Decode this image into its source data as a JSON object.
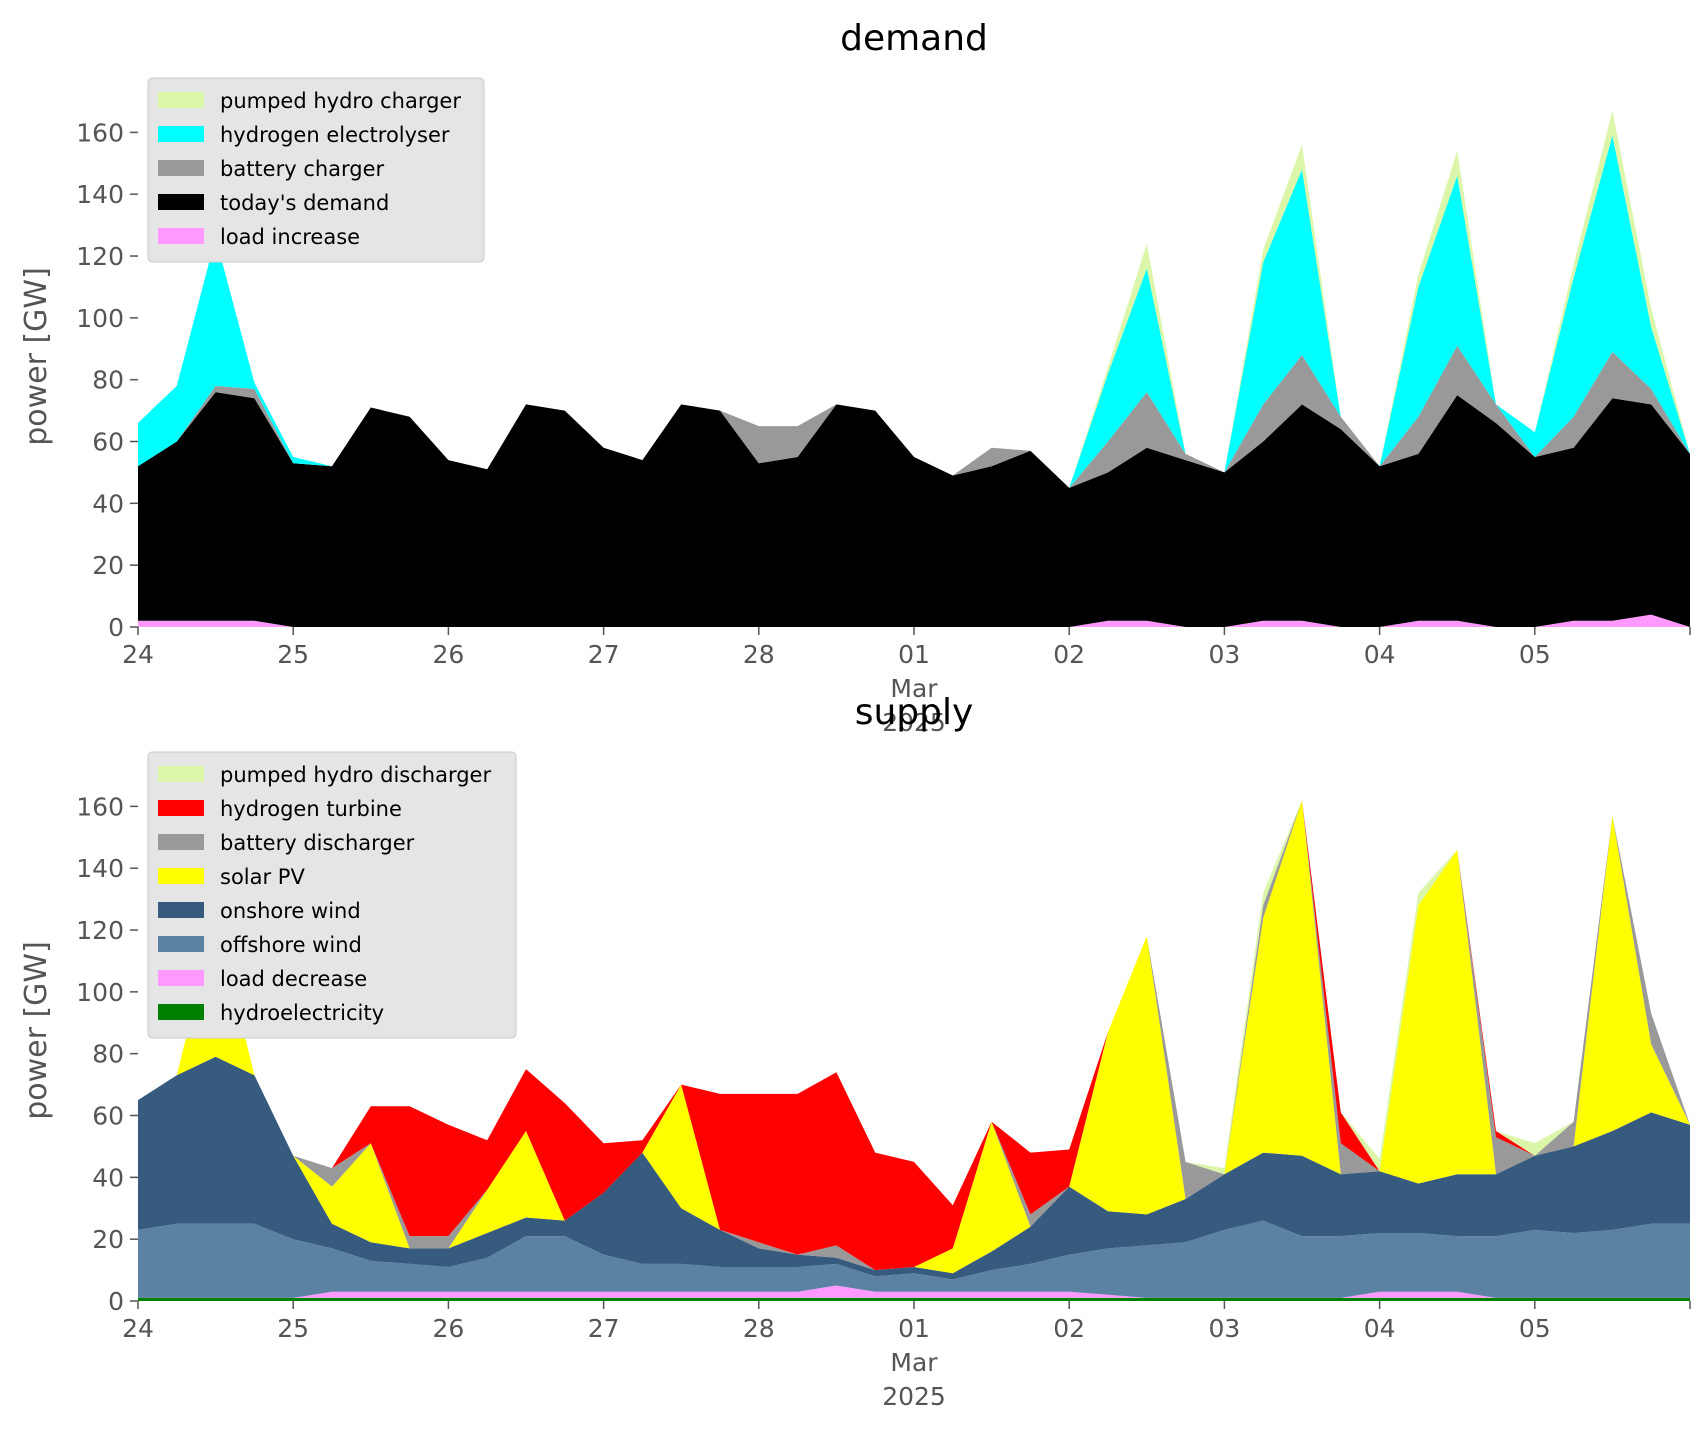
{
  "chart_data": [
    {
      "type": "area",
      "stacked": true,
      "title": "demand",
      "ylabel": "power [GW]",
      "xlabel": "",
      "x_ticks": [
        "24",
        "25",
        "26",
        "27",
        "28",
        "01",
        "02",
        "03",
        "04",
        "05"
      ],
      "x_month_label": "Mar",
      "x_year_label": "2025",
      "ylim": [
        0,
        175
      ],
      "y_ticks": [
        0,
        20,
        40,
        60,
        80,
        100,
        120,
        140,
        160
      ],
      "grid": false,
      "legend_position": "top-left",
      "x_keys": [
        0,
        0.25,
        0.5,
        0.75,
        1,
        1.25,
        1.5,
        1.75,
        2,
        2.25,
        2.5,
        2.75,
        3,
        3.25,
        3.5,
        3.75,
        4,
        4.25,
        4.5,
        4.75,
        5,
        5.25,
        5.5,
        5.75,
        6,
        6.25,
        6.5,
        6.75,
        7,
        7.25,
        7.5,
        7.75,
        8,
        8.25,
        8.5,
        8.75,
        9,
        9.25,
        9.5,
        9.75,
        10
      ],
      "series": [
        {
          "name": "load increase",
          "color": "#ff99ff",
          "values": [
            2,
            2,
            2,
            2,
            0,
            0,
            0,
            0,
            0,
            0,
            0,
            0,
            0,
            0,
            0,
            0,
            0,
            0,
            0,
            0,
            0,
            0,
            0,
            0,
            0,
            2,
            2,
            0,
            0,
            2,
            2,
            0,
            0,
            2,
            2,
            0,
            0,
            2,
            2,
            4,
            0
          ]
        },
        {
          "name": "today's demand",
          "color": "#000000",
          "values": [
            50,
            58,
            74,
            72,
            53,
            52,
            71,
            68,
            54,
            51,
            72,
            70,
            58,
            54,
            72,
            70,
            53,
            55,
            72,
            70,
            55,
            49,
            52,
            57,
            45,
            48,
            56,
            54,
            50,
            58,
            70,
            64,
            52,
            54,
            73,
            66,
            55,
            56,
            72,
            68,
            56
          ]
        },
        {
          "name": "battery charger",
          "color": "#999999",
          "values": [
            0,
            0,
            2,
            3,
            0,
            0,
            0,
            0,
            0,
            0,
            0,
            0,
            0,
            0,
            0,
            0,
            12,
            10,
            0,
            0,
            0,
            0,
            6,
            0,
            0,
            10,
            18,
            2,
            0,
            12,
            16,
            4,
            0,
            12,
            16,
            6,
            0,
            10,
            15,
            5,
            0
          ]
        },
        {
          "name": "hydrogen electrolyser",
          "color": "#00ffff",
          "values": [
            14,
            18,
            48,
            2,
            2,
            0,
            0,
            0,
            0,
            0,
            0,
            0,
            0,
            0,
            0,
            0,
            0,
            0,
            0,
            0,
            0,
            0,
            0,
            0,
            0,
            22,
            40,
            0,
            0,
            46,
            60,
            0,
            0,
            42,
            55,
            0,
            8,
            45,
            70,
            20,
            0
          ]
        },
        {
          "name": "pumped hydro charger",
          "color": "#dbf6a8",
          "values": [
            0,
            0,
            0,
            0,
            0,
            0,
            0,
            0,
            0,
            0,
            0,
            0,
            0,
            0,
            0,
            0,
            0,
            0,
            0,
            0,
            0,
            0,
            0,
            0,
            0,
            2,
            8,
            0,
            0,
            4,
            8,
            0,
            0,
            4,
            8,
            0,
            0,
            4,
            8,
            6,
            0
          ]
        }
      ]
    },
    {
      "type": "area",
      "stacked": true,
      "title": "supply",
      "ylabel": "power [GW]",
      "xlabel": "",
      "x_ticks": [
        "24",
        "25",
        "26",
        "27",
        "28",
        "01",
        "02",
        "03",
        "04",
        "05"
      ],
      "x_month_label": "Mar",
      "x_year_label": "2025",
      "ylim": [
        0,
        175
      ],
      "y_ticks": [
        0,
        20,
        40,
        60,
        80,
        100,
        120,
        140,
        160
      ],
      "grid": false,
      "legend_position": "top-left",
      "x_keys": [
        0,
        0.25,
        0.5,
        0.75,
        1,
        1.25,
        1.5,
        1.75,
        2,
        2.25,
        2.5,
        2.75,
        3,
        3.25,
        3.5,
        3.75,
        4,
        4.25,
        4.5,
        4.75,
        5,
        5.25,
        5.5,
        5.75,
        6,
        6.25,
        6.5,
        6.75,
        7,
        7.25,
        7.5,
        7.75,
        8,
        8.25,
        8.5,
        8.75,
        9,
        9.25,
        9.5,
        9.75,
        10
      ],
      "series": [
        {
          "name": "hydroelectricity",
          "color": "#008000",
          "values": [
            1,
            1,
            1,
            1,
            1,
            1,
            1,
            1,
            1,
            1,
            1,
            1,
            1,
            1,
            1,
            1,
            1,
            1,
            1,
            1,
            1,
            1,
            1,
            1,
            1,
            1,
            1,
            1,
            1,
            1,
            1,
            1,
            1,
            1,
            1,
            1,
            1,
            1,
            1,
            1,
            1
          ]
        },
        {
          "name": "load decrease",
          "color": "#ff99ff",
          "values": [
            0,
            0,
            0,
            0,
            0,
            2,
            2,
            2,
            2,
            2,
            2,
            2,
            2,
            2,
            2,
            2,
            2,
            2,
            4,
            2,
            2,
            2,
            2,
            2,
            2,
            1,
            0,
            0,
            0,
            0,
            0,
            0,
            2,
            2,
            2,
            0,
            0,
            0,
            0,
            0,
            0
          ]
        },
        {
          "name": "offshore wind",
          "color": "#5b82a3",
          "values": [
            22,
            24,
            24,
            24,
            19,
            14,
            10,
            9,
            8,
            11,
            18,
            18,
            12,
            9,
            9,
            8,
            8,
            8,
            7,
            5,
            6,
            4,
            7,
            9,
            12,
            15,
            17,
            18,
            22,
            25,
            20,
            20,
            19,
            19,
            18,
            20,
            22,
            21,
            22,
            24,
            24
          ]
        },
        {
          "name": "onshore wind",
          "color": "#375a7f",
          "values": [
            42,
            48,
            54,
            48,
            27,
            8,
            6,
            5,
            6,
            8,
            6,
            5,
            20,
            36,
            18,
            12,
            6,
            4,
            2,
            2,
            2,
            2,
            6,
            12,
            22,
            12,
            10,
            14,
            18,
            22,
            26,
            20,
            20,
            16,
            20,
            20,
            24,
            28,
            32,
            36,
            32
          ]
        },
        {
          "name": "solar PV",
          "color": "#ffff00",
          "values": [
            0,
            0,
            45,
            0,
            0,
            12,
            32,
            0,
            0,
            14,
            28,
            0,
            0,
            0,
            40,
            0,
            0,
            0,
            0,
            0,
            0,
            8,
            42,
            0,
            0,
            58,
            90,
            0,
            0,
            76,
            115,
            0,
            0,
            90,
            105,
            0,
            0,
            0,
            102,
            22,
            0
          ]
        },
        {
          "name": "battery discharger",
          "color": "#999999",
          "values": [
            0,
            0,
            0,
            0,
            0,
            6,
            0,
            4,
            4,
            0,
            0,
            0,
            0,
            0,
            0,
            0,
            2,
            0,
            4,
            0,
            0,
            0,
            0,
            4,
            0,
            0,
            0,
            12,
            0,
            4,
            0,
            10,
            0,
            0,
            0,
            12,
            0,
            8,
            0,
            10,
            0
          ]
        },
        {
          "name": "hydrogen turbine",
          "color": "#ff0000",
          "values": [
            0,
            0,
            0,
            0,
            0,
            0,
            12,
            42,
            36,
            16,
            20,
            38,
            16,
            4,
            0,
            44,
            48,
            52,
            56,
            38,
            34,
            14,
            0,
            20,
            12,
            0,
            0,
            0,
            0,
            0,
            0,
            10,
            0,
            0,
            0,
            2,
            0,
            0,
            0,
            0,
            0
          ]
        },
        {
          "name": "pumped hydro discharger",
          "color": "#dbf6a8",
          "values": [
            0,
            0,
            0,
            0,
            0,
            0,
            0,
            0,
            0,
            0,
            0,
            0,
            0,
            0,
            0,
            0,
            0,
            0,
            0,
            0,
            0,
            0,
            0,
            0,
            0,
            0,
            0,
            0,
            2,
            4,
            0,
            0,
            4,
            4,
            0,
            0,
            4,
            0,
            0,
            0,
            0
          ]
        }
      ]
    }
  ]
}
